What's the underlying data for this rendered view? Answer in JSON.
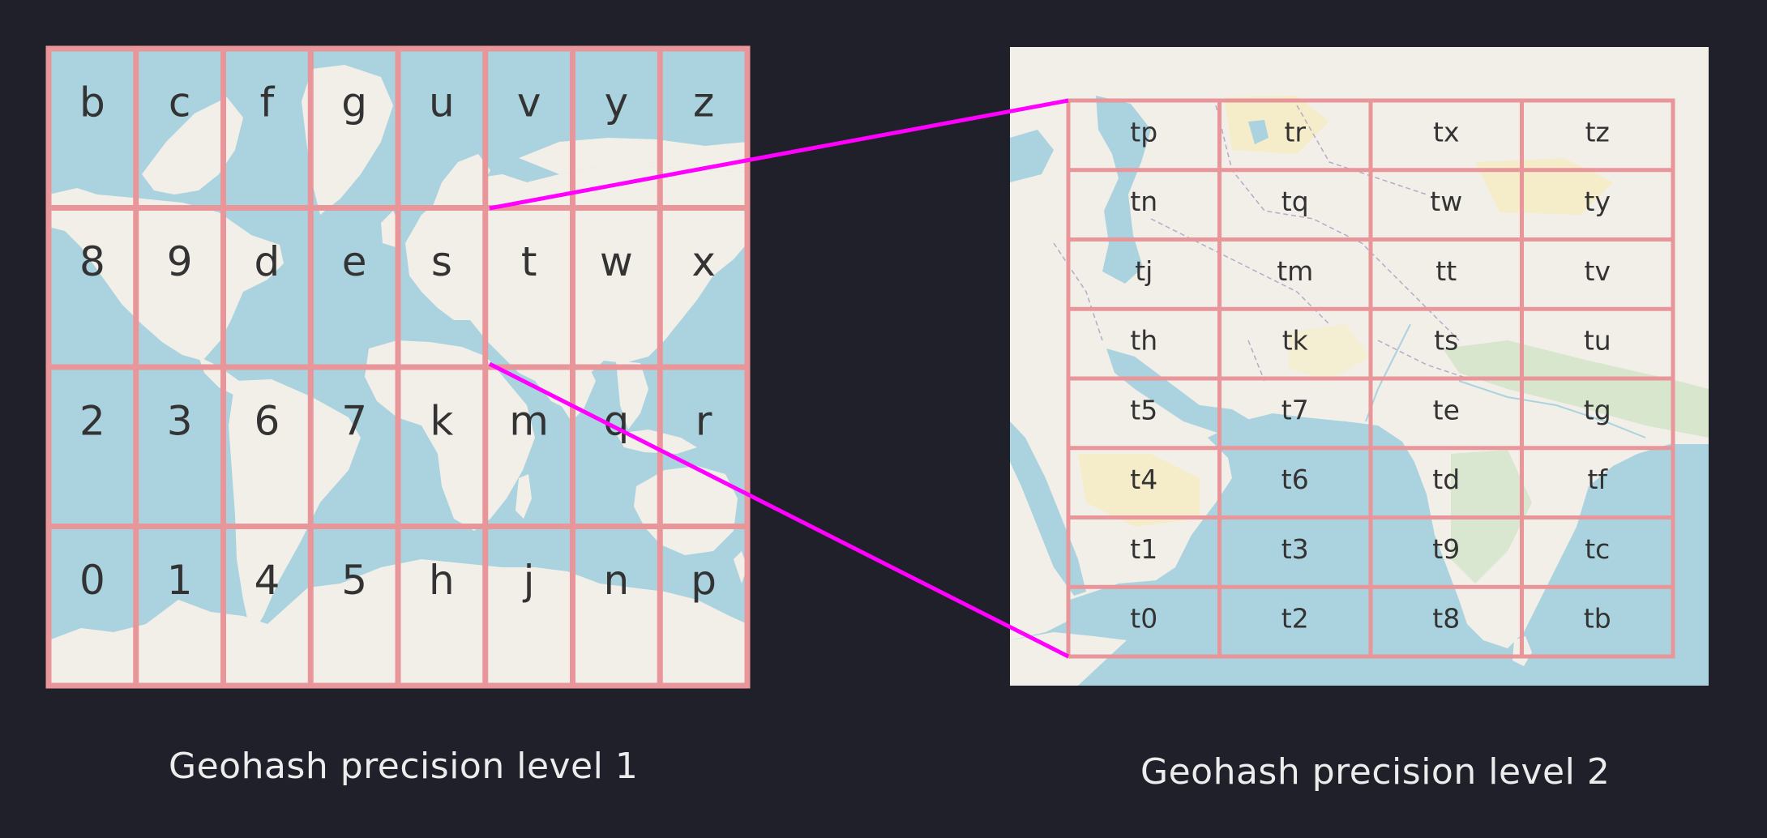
{
  "level1": {
    "caption": "Geohash precision level 1",
    "rows": [
      [
        "b",
        "c",
        "f",
        "g",
        "u",
        "v",
        "y",
        "z"
      ],
      [
        "8",
        "9",
        "d",
        "e",
        "s",
        "t",
        "w",
        "x"
      ],
      [
        "2",
        "3",
        "6",
        "7",
        "k",
        "m",
        "q",
        "r"
      ],
      [
        "0",
        "1",
        "4",
        "5",
        "h",
        "j",
        "n",
        "p"
      ]
    ],
    "zoomed_cell": "t"
  },
  "level2": {
    "caption": "Geohash precision level 2",
    "rows": [
      [
        "tp",
        "tr",
        "tx",
        "tz"
      ],
      [
        "tn",
        "tq",
        "tw",
        "ty"
      ],
      [
        "tj",
        "tm",
        "tt",
        "tv"
      ],
      [
        "th",
        "tk",
        "ts",
        "tu"
      ],
      [
        "t5",
        "t7",
        "te",
        "tg"
      ],
      [
        "t4",
        "t6",
        "td",
        "tf"
      ],
      [
        "t1",
        "t3",
        "t9",
        "tc"
      ],
      [
        "t0",
        "t2",
        "t8",
        "tb"
      ]
    ]
  },
  "colors": {
    "background": "#20202b",
    "ocean": "#aad3df",
    "land": "#f2efe9",
    "grid": "#e8969a",
    "connector": "#ff00ff",
    "label": "#333333",
    "caption": "#ececec"
  }
}
